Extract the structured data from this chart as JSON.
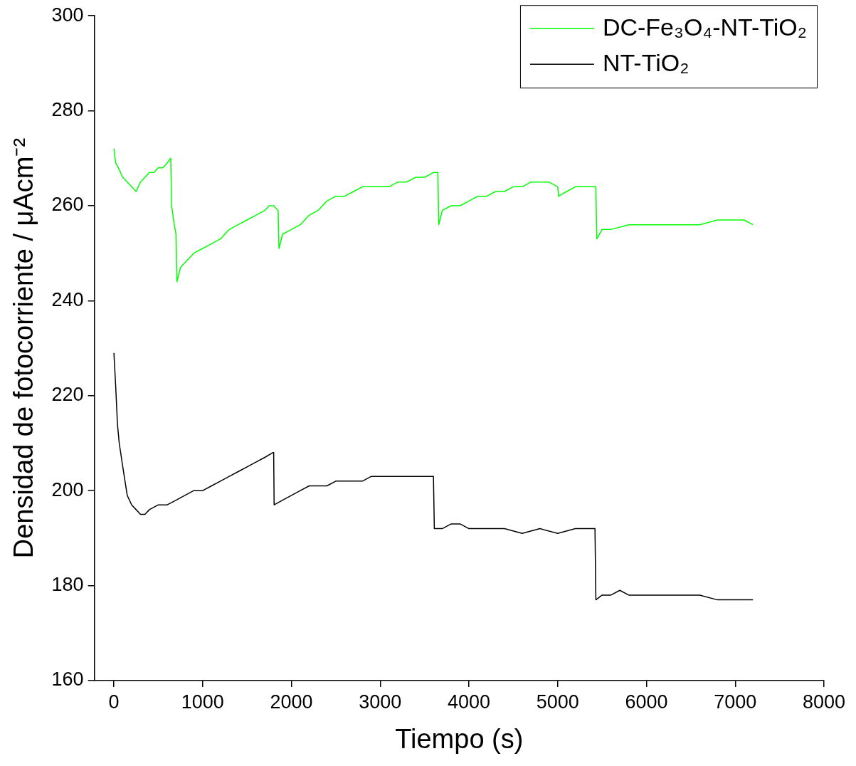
{
  "chart_data": {
    "type": "line",
    "xlabel": "Tiempo (s)",
    "ylabel": "Densidad de fotocorriente / μAcm⁻²",
    "xlim": [
      -220,
      8000
    ],
    "xticks": [
      0,
      1000,
      2000,
      3000,
      4000,
      5000,
      6000,
      7000,
      8000
    ],
    "ylim": [
      160,
      300
    ],
    "yticks": [
      160,
      180,
      200,
      220,
      240,
      260,
      280,
      300
    ],
    "grid": false,
    "legend": "top right",
    "marker": "none",
    "line_style": "solid",
    "series": [
      {
        "name": "DC-Fe₃O₄-NT-TiO₂",
        "color": "#00ff00",
        "x": [
          0,
          20,
          50,
          100,
          150,
          200,
          250,
          300,
          350,
          400,
          450,
          500,
          550,
          600,
          640,
          650,
          680,
          700,
          710,
          750,
          800,
          900,
          1000,
          1100,
          1200,
          1300,
          1400,
          1500,
          1600,
          1700,
          1750,
          1800,
          1850,
          1860,
          1900,
          2000,
          2100,
          2200,
          2300,
          2400,
          2500,
          2600,
          2700,
          2800,
          2900,
          3000,
          3100,
          3200,
          3300,
          3400,
          3500,
          3600,
          3650,
          3660,
          3700,
          3800,
          3900,
          4000,
          4100,
          4200,
          4300,
          4400,
          4500,
          4600,
          4700,
          4800,
          4900,
          5000,
          5010,
          5100,
          5200,
          5300,
          5400,
          5430,
          5440,
          5500,
          5600,
          5800,
          6000,
          6200,
          6400,
          6600,
          6800,
          7000,
          7100,
          7200
        ],
        "values": [
          272,
          269,
          268,
          266,
          265,
          264,
          263,
          265,
          266,
          267,
          267,
          268,
          268,
          269,
          270,
          260,
          256,
          254,
          244,
          247,
          248,
          250,
          251,
          252,
          253,
          255,
          256,
          257,
          258,
          259,
          260,
          260,
          259,
          251,
          254,
          255,
          256,
          258,
          259,
          261,
          262,
          262,
          263,
          264,
          264,
          264,
          264,
          265,
          265,
          266,
          266,
          267,
          267,
          256,
          259,
          260,
          260,
          261,
          262,
          262,
          263,
          263,
          264,
          264,
          265,
          265,
          265,
          264,
          262,
          263,
          264,
          264,
          264,
          264,
          253,
          255,
          255,
          256,
          256,
          256,
          256,
          256,
          257,
          257,
          257,
          256
        ]
      },
      {
        "name": "NT-TiO₂",
        "color": "#000000",
        "x": [
          0,
          20,
          40,
          60,
          100,
          150,
          200,
          250,
          300,
          350,
          400,
          500,
          600,
          700,
          800,
          900,
          1000,
          1100,
          1200,
          1300,
          1400,
          1500,
          1600,
          1700,
          1790,
          1800,
          1805,
          1900,
          2000,
          2100,
          2200,
          2300,
          2400,
          2500,
          2600,
          2700,
          2800,
          2900,
          3000,
          3100,
          3200,
          3300,
          3400,
          3500,
          3600,
          3610,
          3700,
          3800,
          3900,
          4000,
          4200,
          4400,
          4600,
          4800,
          5000,
          5200,
          5420,
          5430,
          5500,
          5600,
          5700,
          5800,
          6000,
          6200,
          6400,
          6600,
          6800,
          7000,
          7200
        ],
        "values": [
          229,
          222,
          214,
          210,
          205,
          199,
          197,
          196,
          195,
          195,
          196,
          197,
          197,
          198,
          199,
          200,
          200,
          201,
          202,
          203,
          204,
          205,
          206,
          207,
          208,
          208,
          197,
          198,
          199,
          200,
          201,
          201,
          201,
          202,
          202,
          202,
          202,
          203,
          203,
          203,
          203,
          203,
          203,
          203,
          203,
          192,
          192,
          193,
          193,
          192,
          192,
          192,
          191,
          192,
          191,
          192,
          192,
          177,
          178,
          178,
          179,
          178,
          178,
          178,
          178,
          178,
          177,
          177,
          177
        ]
      }
    ]
  }
}
